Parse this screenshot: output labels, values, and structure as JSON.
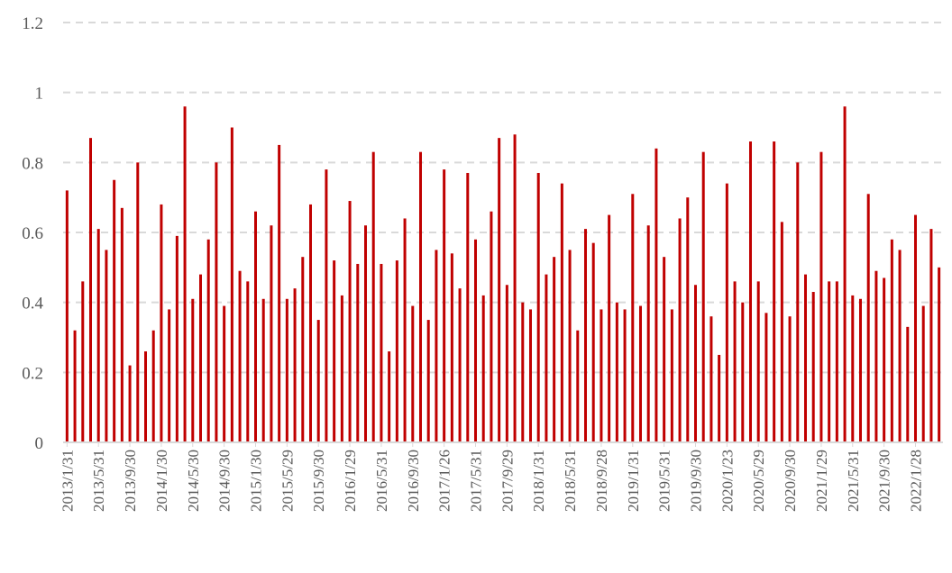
{
  "chart_data": {
    "type": "bar",
    "title": "",
    "xlabel": "",
    "ylabel": "",
    "ylim": [
      0,
      1.2
    ],
    "yticks": [
      "0",
      "0.2",
      "0.4",
      "0.6",
      "0.8",
      "1",
      "1.2"
    ],
    "grid": "horizontal-dashed",
    "legend": "none",
    "bar_color": "#C00000",
    "x_tick_labels": [
      "2013/1/31",
      "2013/5/31",
      "2013/9/30",
      "2014/1/30",
      "2014/5/30",
      "2014/9/30",
      "2015/1/30",
      "2015/5/29",
      "2015/9/30",
      "2016/1/29",
      "2016/5/31",
      "2016/9/30",
      "2017/1/26",
      "2017/5/31",
      "2017/9/29",
      "2018/1/31",
      "2018/5/31",
      "2018/9/28",
      "2019/1/31",
      "2019/5/31",
      "2019/9/30",
      "2020/1/23",
      "2020/5/29",
      "2020/9/30",
      "2021/1/29",
      "2021/5/31",
      "2021/9/30",
      "2022/1/28"
    ],
    "values": [
      0.72,
      0.32,
      0.46,
      0.87,
      0.61,
      0.55,
      0.75,
      0.67,
      0.22,
      0.8,
      0.26,
      0.32,
      0.68,
      0.38,
      0.59,
      0.96,
      0.41,
      0.48,
      0.58,
      0.8,
      0.39,
      0.9,
      0.49,
      0.46,
      0.66,
      0.41,
      0.62,
      0.85,
      0.41,
      0.44,
      0.53,
      0.68,
      0.35,
      0.78,
      0.52,
      0.42,
      0.69,
      0.51,
      0.62,
      0.83,
      0.51,
      0.26,
      0.52,
      0.64,
      0.39,
      0.83,
      0.35,
      0.55,
      0.78,
      0.54,
      0.44,
      0.77,
      0.58,
      0.42,
      0.66,
      0.87,
      0.45,
      0.88,
      0.4,
      0.38,
      0.77,
      0.48,
      0.53,
      0.74,
      0.55,
      0.32,
      0.61,
      0.57,
      0.38,
      0.65,
      0.4,
      0.38,
      0.71,
      0.39,
      0.62,
      0.84,
      0.53,
      0.38,
      0.64,
      0.7,
      0.45,
      0.83,
      0.36,
      0.25,
      0.74,
      0.46,
      0.4,
      0.86,
      0.46,
      0.37,
      0.86,
      0.63,
      0.36,
      0.8,
      0.48,
      0.43,
      0.83,
      0.46,
      0.46,
      0.96,
      0.42,
      0.41,
      0.71,
      0.49,
      0.47,
      0.58,
      0.55,
      0.33,
      0.65,
      0.39,
      0.61,
      0.5
    ]
  }
}
